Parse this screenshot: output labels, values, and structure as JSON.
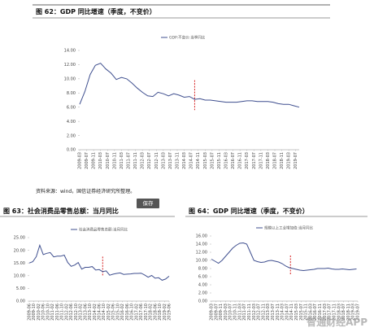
{
  "chart_data": [
    {
      "type": "line",
      "title": "图 62：GDP 同比增速（季度，不变价）",
      "source": "资料来源：wind，国信证券经济研究所整理。",
      "series": [
        {
          "name": "GDP:不变价:当季同比",
          "color": "#3f4f8f",
          "values": [
            6.4,
            8.2,
            10.6,
            11.9,
            12.2,
            11.4,
            10.8,
            9.9,
            10.2,
            10.0,
            9.4,
            8.7,
            8.1,
            7.6,
            7.5,
            8.1,
            7.9,
            7.6,
            7.9,
            7.7,
            7.4,
            7.5,
            7.1,
            7.2,
            7.0,
            7.0,
            6.9,
            6.8,
            6.7,
            6.7,
            6.7,
            6.8,
            6.9,
            6.9,
            6.8,
            6.8,
            6.8,
            6.7,
            6.5,
            6.4,
            6.4,
            6.2,
            6.0
          ]
        }
      ],
      "x": [
        "2009-03",
        "2009-06",
        "2009-09",
        "2009-12",
        "2010-03",
        "2010-06",
        "2010-09",
        "2010-12",
        "2011-03",
        "2011-06",
        "2011-09",
        "2011-12",
        "2012-03",
        "2012-06",
        "2012-09",
        "2012-12",
        "2013-03",
        "2013-06",
        "2013-09",
        "2013-12",
        "2014-03",
        "2014-06",
        "2014-09",
        "2014-12",
        "2015-03",
        "2015-06",
        "2015-09",
        "2015-12",
        "2016-03",
        "2016-06",
        "2016-09",
        "2016-12",
        "2017-03",
        "2017-06",
        "2017-09",
        "2017-12",
        "2018-03",
        "2018-06",
        "2018-09",
        "2018-12",
        "2019-03",
        "2019-06",
        "2019-09"
      ],
      "xlim": [
        "2009-03",
        "2019-09"
      ],
      "xticks": [
        "2009-03",
        "2009-07",
        "2009-11",
        "2010-03",
        "2010-07",
        "2010-11",
        "2011-03",
        "2011-07",
        "2011-11",
        "2012-03",
        "2012-07",
        "2012-11",
        "2013-03",
        "2013-07",
        "2013-11",
        "2014-03",
        "2014-07",
        "2014-11",
        "2015-03",
        "2015-07",
        "2015-11",
        "2016-03",
        "2016-07",
        "2016-11",
        "2017-03",
        "2017-07",
        "2017-11",
        "2018-03",
        "2018-07",
        "2018-11",
        "2019-03",
        "2019-07"
      ],
      "ylim": [
        0,
        14
      ],
      "yticks": [
        {
          "value": 0,
          "label": "0.00"
        },
        {
          "value": 2,
          "label": "2.00"
        },
        {
          "value": 4,
          "label": "4.00"
        },
        {
          "value": 6,
          "label": "6.00"
        },
        {
          "value": 8,
          "label": "8.00"
        },
        {
          "value": 10,
          "label": "10.00"
        },
        {
          "value": 12,
          "label": "12.00"
        },
        {
          "value": 14,
          "label": "14.00"
        }
      ],
      "reference_line": {
        "x": "2014-09",
        "color": "#d62020"
      }
    },
    {
      "type": "line",
      "title": "图 63：社会消费品零售总额：当月同比",
      "series": [
        {
          "name": "社会消费品零售总额:当月同比",
          "color": "#3f4f8f",
          "values": [
            15.0,
            15.5,
            17.5,
            22.0,
            18.3,
            18.8,
            19.1,
            17.4,
            17.7,
            17.7,
            18.1,
            15.2,
            13.7,
            14.2,
            15.2,
            12.6,
            13.3,
            13.3,
            13.6,
            12.2,
            12.4,
            11.6,
            11.9,
            10.2,
            10.6,
            10.9,
            11.1,
            10.5,
            10.6,
            10.7,
            10.9,
            10.9,
            11.0,
            10.3,
            9.4,
            10.1,
            9.0,
            9.2,
            8.2,
            8.7,
            9.8
          ]
        }
      ],
      "x": [
        "2009-06",
        "2009-09",
        "2009-12",
        "2010-03",
        "2010-06",
        "2010-09",
        "2010-12",
        "2011-03",
        "2011-06",
        "2011-09",
        "2011-12",
        "2012-03",
        "2012-06",
        "2012-09",
        "2012-12",
        "2013-03",
        "2013-06",
        "2013-09",
        "2013-12",
        "2014-03",
        "2014-06",
        "2014-09",
        "2014-12",
        "2015-03",
        "2015-06",
        "2015-09",
        "2015-12",
        "2016-03",
        "2016-06",
        "2016-09",
        "2016-12",
        "2017-03",
        "2017-06",
        "2017-09",
        "2017-12",
        "2018-03",
        "2018-06",
        "2018-09",
        "2018-12",
        "2019-03",
        "2019-06"
      ],
      "xlim": [
        "2009-06",
        "2019-06"
      ],
      "xticks": [
        "2009-06",
        "2009-10",
        "2010-02",
        "2010-06",
        "2010-10",
        "2011-02",
        "2011-06",
        "2011-10",
        "2012-02",
        "2012-06",
        "2012-10",
        "2013-02",
        "2013-06",
        "2013-10",
        "2014-02",
        "2014-06",
        "2014-10",
        "2015-02",
        "2015-06",
        "2015-10",
        "2016-02",
        "2016-06",
        "2016-10",
        "2017-02",
        "2017-06",
        "2017-10",
        "2018-02",
        "2018-06",
        "2018-10",
        "2019-02",
        "2019-06"
      ],
      "ylim": [
        0,
        25
      ],
      "yticks": [
        {
          "value": 0,
          "label": "0.00"
        },
        {
          "value": 5,
          "label": "5.00"
        },
        {
          "value": 10,
          "label": "10.00"
        },
        {
          "value": 15,
          "label": "15.00"
        },
        {
          "value": 20,
          "label": "20.00"
        },
        {
          "value": 25,
          "label": "25.00"
        }
      ],
      "reference_line": {
        "x": "2014-09",
        "color": "#d62020"
      }
    },
    {
      "type": "line",
      "title": "图 64：GDP 同比增速（季度，不变价）",
      "series": [
        {
          "name": "规模以上工业增加值:当月同比",
          "color": "#3f4f8f",
          "values": [
            10.3,
            9.8,
            9.3,
            10.0,
            11.0,
            12.0,
            13.0,
            13.7,
            14.2,
            14.3,
            14.0,
            12.0,
            10.0,
            9.7,
            9.5,
            9.6,
            9.9,
            10.0,
            9.8,
            9.6,
            9.2,
            8.6,
            8.2,
            8.0,
            7.8,
            7.6,
            7.5,
            7.6,
            7.7,
            7.8,
            8.0,
            8.0,
            8.0,
            8.1,
            7.9,
            7.8,
            7.8,
            7.9,
            7.8,
            7.7,
            7.8,
            7.9
          ]
        }
      ],
      "x": [
        "2009-03",
        "2009-06",
        "2009-09",
        "2009-12",
        "2010-03",
        "2010-06",
        "2010-09",
        "2010-12",
        "2011-03",
        "2011-06",
        "2011-09",
        "2011-12",
        "2012-03",
        "2012-06",
        "2012-09",
        "2012-12",
        "2013-03",
        "2013-06",
        "2013-09",
        "2013-12",
        "2014-03",
        "2014-06",
        "2014-09",
        "2014-12",
        "2015-03",
        "2015-06",
        "2015-09",
        "2015-12",
        "2016-03",
        "2016-06",
        "2016-09",
        "2016-12",
        "2017-03",
        "2017-06",
        "2017-09",
        "2017-12",
        "2018-03",
        "2018-06",
        "2018-09",
        "2018-12",
        "2019-03",
        "2019-06"
      ],
      "xlim": [
        "2009-03",
        "2019-07"
      ],
      "xticks": [
        "2009-03",
        "2009-07",
        "2009-11",
        "2010-03",
        "2010-07",
        "2010-11",
        "2011-03",
        "2011-07",
        "2011-11",
        "2012-03",
        "2012-07",
        "2012-11",
        "2013-03",
        "2013-07",
        "2013-11",
        "2014-03",
        "2014-07",
        "2014-11",
        "2015-03",
        "2015-07",
        "2015-11",
        "2016-03",
        "2016-07",
        "2016-11",
        "2017-03",
        "2017-07",
        "2017-11",
        "2018-03",
        "2018-07",
        "2018-11",
        "2019-03",
        "2019-07"
      ],
      "ylim": [
        0,
        16
      ],
      "yticks": [
        {
          "value": 0,
          "label": "0.00"
        },
        {
          "value": 2,
          "label": "2.00"
        },
        {
          "value": 4,
          "label": "4.00"
        },
        {
          "value": 6,
          "label": "6.00"
        },
        {
          "value": 8,
          "label": "8.00"
        },
        {
          "value": 10,
          "label": "10.00"
        },
        {
          "value": 12,
          "label": "12.00"
        },
        {
          "value": 14,
          "label": "14.00"
        },
        {
          "value": 16,
          "label": "16.00"
        }
      ],
      "reference_line": {
        "x": "2014-10",
        "color": "#d62020"
      }
    }
  ],
  "save_button": "保存",
  "watermark": "智通财经APP"
}
